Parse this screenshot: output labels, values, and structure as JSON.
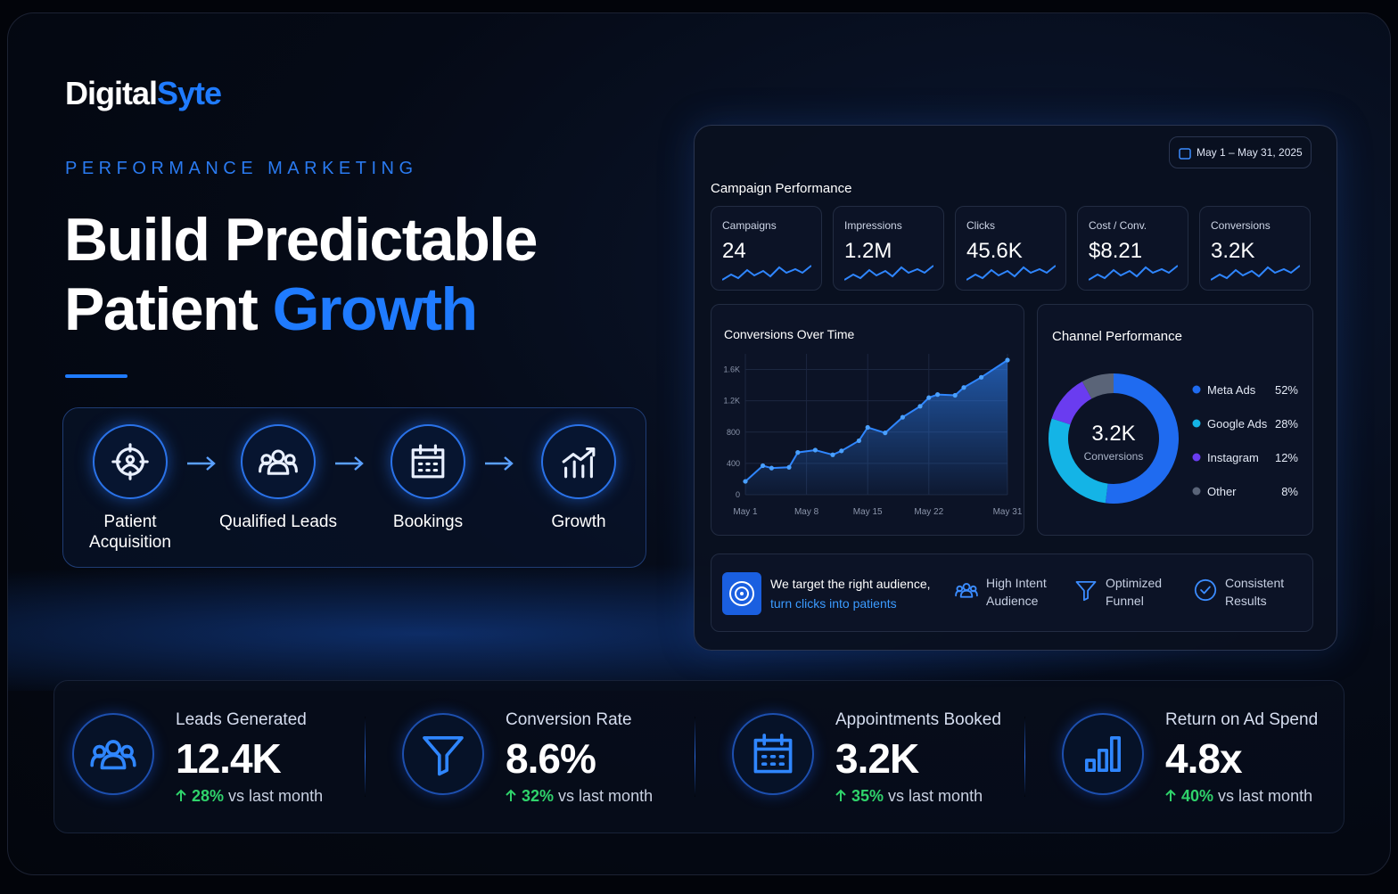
{
  "brand": {
    "name": "Digital",
    "accent": "Syte"
  },
  "eyebrow": "PERFORMANCE MARKETING",
  "headline": {
    "line1": "Build Predictable",
    "line2": "Patient",
    "accent": "Growth"
  },
  "flow": {
    "steps": [
      "Patient Acquisition",
      "Qualified Leads",
      "Bookings",
      "Growth"
    ]
  },
  "dashboard": {
    "date_range": "May 1 – May 31, 2025",
    "section_title": "Campaign Performance",
    "kpis": [
      {
        "label": "Campaigns",
        "value": "24"
      },
      {
        "label": "Impressions",
        "value": "1.2M"
      },
      {
        "label": "Clicks",
        "value": "45.6K"
      },
      {
        "label": "Cost / Conv.",
        "value": "$8.21"
      },
      {
        "label": "Conversions",
        "value": "3.2K"
      }
    ],
    "banner": {
      "line1": "We target the right audience,",
      "line2": "turn clicks into patients"
    },
    "features": [
      "High Intent Audience",
      "Optimized Funnel",
      "Consistent Results"
    ]
  },
  "chart_data": [
    {
      "type": "line",
      "title": "Conversions Over Time",
      "color": "#2f86ff",
      "x": [
        1,
        3,
        4,
        6,
        7,
        9,
        11,
        12,
        14,
        15,
        17,
        19,
        21,
        22,
        23,
        25,
        26,
        28,
        31
      ],
      "values": [
        170,
        370,
        340,
        350,
        540,
        570,
        510,
        560,
        690,
        860,
        790,
        990,
        1130,
        1240,
        1280,
        1270,
        1370,
        1500,
        1720
      ],
      "xlim": [
        1,
        31
      ],
      "ylim": [
        0,
        1800
      ],
      "xticks": [
        {
          "value": 1,
          "label": "May 1"
        },
        {
          "value": 8,
          "label": "May 8"
        },
        {
          "value": 15,
          "label": "May 15"
        },
        {
          "value": 22,
          "label": "May 22"
        },
        {
          "value": 31,
          "label": "May 31"
        }
      ],
      "yticks": [
        0,
        400,
        800,
        {
          "value": 1200,
          "label": "1.2K"
        },
        {
          "value": 1600,
          "label": "1.6K"
        }
      ],
      "grid": true
    },
    {
      "type": "pie",
      "title": "Channel Performance",
      "center_value": "3.2K",
      "center_label": "Conversions",
      "categories": [
        "Meta Ads",
        "Google Ads",
        "Instagram",
        "Other"
      ],
      "values": [
        52,
        28,
        12,
        8
      ],
      "value_labels": [
        "52%",
        "28%",
        "12%",
        "8%"
      ],
      "colors": [
        "#1f6bf0",
        "#14b4e6",
        "#6a3cf0",
        "#5a6478"
      ]
    }
  ],
  "stats": [
    {
      "label": "Leads Generated",
      "value": "12.4K",
      "change": "28%",
      "note": "vs last month"
    },
    {
      "label": "Conversion Rate",
      "value": "8.6%",
      "change": "32%",
      "note": "vs last month"
    },
    {
      "label": "Appointments Booked",
      "value": "3.2K",
      "change": "35%",
      "note": "vs last month"
    },
    {
      "label": "Return on Ad Spend",
      "value": "4.8x",
      "change": "40%",
      "note": "vs last month"
    }
  ]
}
